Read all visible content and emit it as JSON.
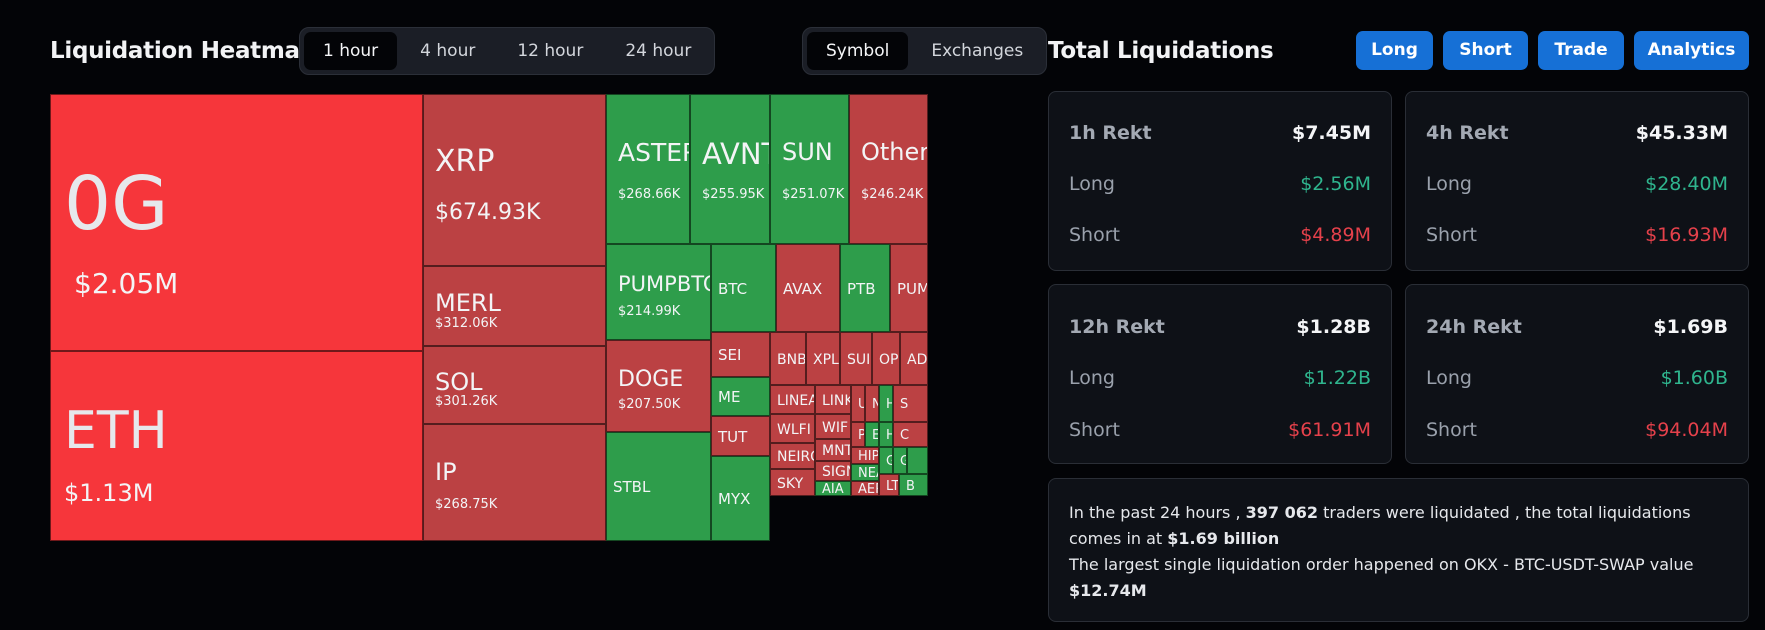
{
  "heatmap": {
    "title": "Liquidation Heatmap",
    "time_tabs": [
      {
        "label": "1 hour",
        "active": true
      },
      {
        "label": "4 hour",
        "active": false
      },
      {
        "label": "12 hour",
        "active": false
      },
      {
        "label": "24 hour",
        "active": false
      }
    ],
    "view_tabs": [
      {
        "label": "Symbol",
        "active": true
      },
      {
        "label": "Exchanges",
        "active": false
      }
    ],
    "colors": {
      "bright_red": "#f6363b",
      "red": "#bb4143",
      "green": "#2e9d4b"
    },
    "tiles": [
      {
        "symbol": "0G",
        "value": "$2.05M",
        "color": "bright_red"
      },
      {
        "symbol": "ETH",
        "value": "$1.13M",
        "color": "bright_red"
      },
      {
        "symbol": "XRP",
        "value": "$674.93K",
        "color": "red"
      },
      {
        "symbol": "MERL",
        "value": "$312.06K",
        "color": "red"
      },
      {
        "symbol": "SOL",
        "value": "$301.26K",
        "color": "red"
      },
      {
        "symbol": "IP",
        "value": "$268.75K",
        "color": "red"
      },
      {
        "symbol": "ASTER",
        "value": "$268.66K",
        "color": "green"
      },
      {
        "symbol": "AVNT",
        "value": "$255.95K",
        "color": "green"
      },
      {
        "symbol": "SUN",
        "value": "$251.07K",
        "color": "green"
      },
      {
        "symbol": "Others",
        "value": "$246.24K",
        "color": "red"
      },
      {
        "symbol": "PUMPBTC",
        "value": "$214.99K",
        "color": "green"
      },
      {
        "symbol": "BTC",
        "value": "",
        "color": "green"
      },
      {
        "symbol": "AVAX",
        "value": "",
        "color": "red"
      },
      {
        "symbol": "PTB",
        "value": "",
        "color": "green"
      },
      {
        "symbol": "PUMP",
        "value": "",
        "color": "red"
      },
      {
        "symbol": "DOGE",
        "value": "$207.50K",
        "color": "red"
      },
      {
        "symbol": "STBL",
        "value": "",
        "color": "green"
      },
      {
        "symbol": "SEI",
        "value": "",
        "color": "red"
      },
      {
        "symbol": "ME",
        "value": "",
        "color": "green"
      },
      {
        "symbol": "TUT",
        "value": "",
        "color": "red"
      },
      {
        "symbol": "MYX",
        "value": "",
        "color": "green"
      },
      {
        "symbol": "BNB",
        "value": "",
        "color": "red"
      },
      {
        "symbol": "XPL",
        "value": "",
        "color": "red"
      },
      {
        "symbol": "SUI",
        "value": "",
        "color": "red"
      },
      {
        "symbol": "OP",
        "value": "",
        "color": "red"
      },
      {
        "symbol": "ADA",
        "value": "",
        "color": "red"
      },
      {
        "symbol": "LINEA",
        "value": "",
        "color": "red"
      },
      {
        "symbol": "LINK",
        "value": "",
        "color": "red"
      },
      {
        "symbol": "WLFI",
        "value": "",
        "color": "red"
      },
      {
        "symbol": "WIF",
        "value": "",
        "color": "red"
      },
      {
        "symbol": "NEIRO",
        "value": "",
        "color": "red"
      },
      {
        "symbol": "MNT",
        "value": "",
        "color": "red"
      },
      {
        "symbol": "SKY",
        "value": "",
        "color": "red"
      },
      {
        "symbol": "SIGN",
        "value": "",
        "color": "red"
      },
      {
        "symbol": "AIA",
        "value": "",
        "color": "green"
      },
      {
        "symbol": "U",
        "value": "",
        "color": "red"
      },
      {
        "symbol": "N",
        "value": "",
        "color": "red"
      },
      {
        "symbol": "H",
        "value": "",
        "color": "green"
      },
      {
        "symbol": "S",
        "value": "",
        "color": "red"
      },
      {
        "symbol": "P",
        "value": "",
        "color": "red"
      },
      {
        "symbol": "E",
        "value": "",
        "color": "green"
      },
      {
        "symbol": "H",
        "value": "",
        "color": "green"
      },
      {
        "symbol": "C",
        "value": "",
        "color": "red"
      },
      {
        "symbol": "HIPPO",
        "value": "",
        "color": "red"
      },
      {
        "symbol": "NEAR",
        "value": "",
        "color": "green"
      },
      {
        "symbol": "AERO",
        "value": "",
        "color": "red"
      },
      {
        "symbol": "G",
        "value": "",
        "color": "green"
      },
      {
        "symbol": "G",
        "value": "",
        "color": "green"
      },
      {
        "symbol": "LT",
        "value": "",
        "color": "red"
      },
      {
        "symbol": "B",
        "value": "",
        "color": "green"
      },
      {
        "symbol": "",
        "value": "",
        "color": "green"
      },
      {
        "symbol": "",
        "value": "",
        "color": "red"
      },
      {
        "symbol": "",
        "value": "",
        "color": "red"
      },
      {
        "symbol": "",
        "value": "",
        "color": "green"
      }
    ]
  },
  "totals": {
    "title": "Total Liquidations",
    "buttons": [
      "Long",
      "Short",
      "Trade",
      "Analytics"
    ],
    "cards": [
      {
        "label": "1h Rekt",
        "total": "$7.45M",
        "long_label": "Long",
        "long": "$2.56M",
        "short_label": "Short",
        "short": "$4.89M"
      },
      {
        "label": "4h Rekt",
        "total": "$45.33M",
        "long_label": "Long",
        "long": "$28.40M",
        "short_label": "Short",
        "short": "$16.93M"
      },
      {
        "label": "12h Rekt",
        "total": "$1.28B",
        "long_label": "Long",
        "long": "$1.22B",
        "short_label": "Short",
        "short": "$61.91M"
      },
      {
        "label": "24h Rekt",
        "total": "$1.69B",
        "long_label": "Long",
        "long": "$1.60B",
        "short_label": "Short",
        "short": "$94.04M"
      }
    ],
    "summary": {
      "part1": "In the past 24 hours , ",
      "traders": "397 062",
      "part2": " traders were liquidated , the total liquidations comes in at ",
      "total": "$1.69 billion",
      "part3": "The largest single liquidation order happened on OKX - BTC-USDT-SWAP value ",
      "largest": "$12.74M"
    },
    "colors": {
      "button": "#1670d6",
      "long": "#2fb58e",
      "short": "#e5414b"
    }
  }
}
